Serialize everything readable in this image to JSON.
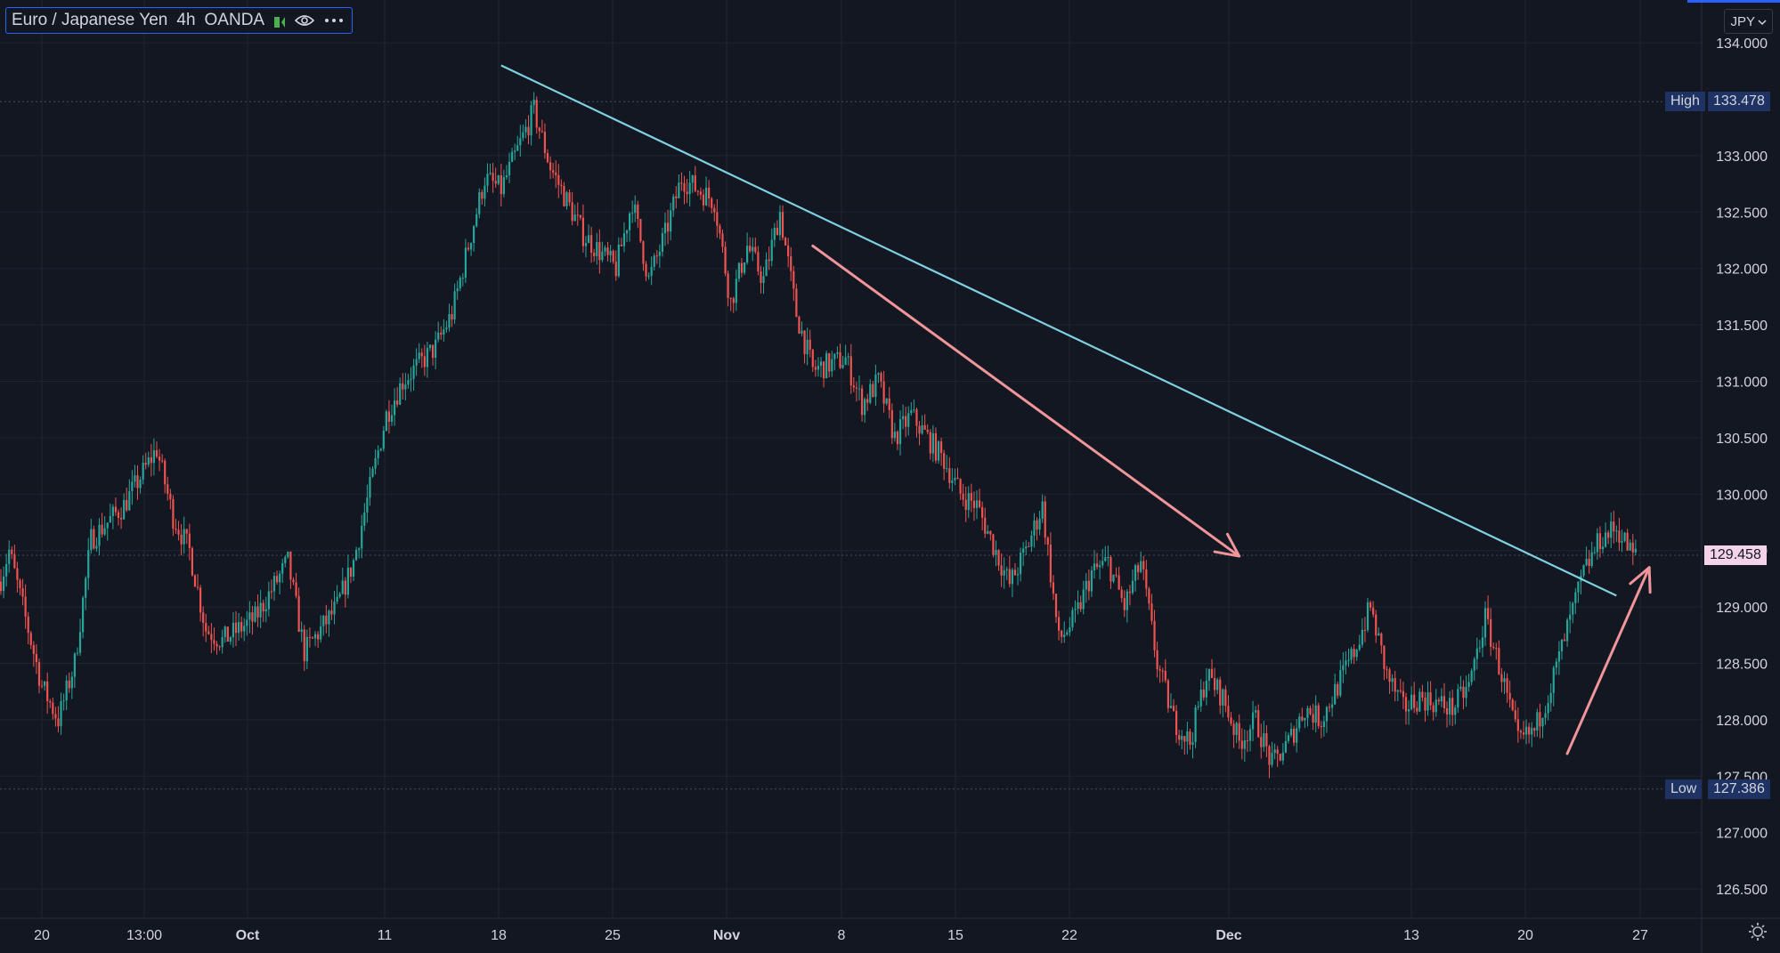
{
  "header": {
    "symbol_name": "Euro / Japanese Yen",
    "interval": "4h",
    "exchange": "OANDA",
    "currency_button": "JPY",
    "icons": [
      "flag-icon",
      "eye-icon",
      "more-icon",
      "chevron-down-icon",
      "settings-icon"
    ]
  },
  "price_labels": {
    "high_label": "High",
    "high_value": "133.478",
    "low_label": "Low",
    "low_value": "127.386",
    "last_value": "129.458"
  },
  "colors": {
    "background": "#131722",
    "grid": "#1f2430",
    "up_candle": "#26a69a",
    "down_candle": "#ef5350",
    "trendline": "#7fd0e0",
    "arrow": "#f0959a",
    "axis_text": "#d1d4dc",
    "accent": "#2962ff",
    "high_low_tag": "#1e3264",
    "last_price_tag": "#f3d3e8"
  },
  "chart_data": {
    "type": "candlestick",
    "title": "Euro / Japanese Yen · 4h · OANDA",
    "y_axis": {
      "ticks": [
        126.5,
        127.0,
        127.5,
        128.0,
        128.5,
        129.0,
        129.5,
        130.0,
        130.5,
        131.0,
        131.5,
        132.0,
        132.5,
        133.0,
        134.0
      ],
      "tick_labels": [
        "126.500",
        "127.000",
        "127.500",
        "128.000",
        "128.500",
        "129.000",
        "129.500",
        "130.000",
        "130.500",
        "131.000",
        "131.500",
        "132.000",
        "132.500",
        "133.000",
        "134.000"
      ],
      "range": [
        126.1,
        134.1
      ]
    },
    "x_axis": {
      "tick_labels": [
        "20",
        "13:00",
        "Oct",
        "11",
        "18",
        "25",
        "Nov",
        "8",
        "15",
        "22",
        "Dec",
        "13",
        "20",
        "27"
      ],
      "bold_labels": [
        "Oct",
        "Nov",
        "Dec"
      ]
    },
    "high": 133.478,
    "low": 127.386,
    "last": 129.458,
    "price_path": [
      {
        "t": "Sep 17",
        "p": 129.0
      },
      {
        "t": "Sep 18",
        "p": 129.5
      },
      {
        "t": "Sep 20",
        "p": 128.3
      },
      {
        "t": "Sep 21",
        "p": 128.0
      },
      {
        "t": "Sep 22",
        "p": 128.5
      },
      {
        "t": "Sep 23",
        "p": 129.6
      },
      {
        "t": "Sep 25",
        "p": 129.9
      },
      {
        "t": "Sep 27",
        "p": 130.4
      },
      {
        "t": "Sep 28",
        "p": 129.8
      },
      {
        "t": "Sep 29",
        "p": 129.5
      },
      {
        "t": "Sep 30",
        "p": 128.8
      },
      {
        "t": "Oct 01",
        "p": 128.7
      },
      {
        "t": "Oct 03",
        "p": 128.9
      },
      {
        "t": "Oct 05",
        "p": 129.4
      },
      {
        "t": "Oct 06",
        "p": 128.6
      },
      {
        "t": "Oct 08",
        "p": 129.0
      },
      {
        "t": "Oct 09",
        "p": 129.4
      },
      {
        "t": "Oct 11",
        "p": 130.7
      },
      {
        "t": "Oct 12",
        "p": 131.0
      },
      {
        "t": "Oct 14",
        "p": 131.3
      },
      {
        "t": "Oct 15",
        "p": 131.6
      },
      {
        "t": "Oct 17",
        "p": 132.8
      },
      {
        "t": "Oct 18",
        "p": 132.7
      },
      {
        "t": "Oct 20",
        "p": 133.4
      },
      {
        "t": "Oct 21",
        "p": 132.9
      },
      {
        "t": "Oct 22",
        "p": 132.6
      },
      {
        "t": "Oct 23",
        "p": 132.3
      },
      {
        "t": "Oct 25",
        "p": 132.0
      },
      {
        "t": "Oct 26",
        "p": 132.6
      },
      {
        "t": "Oct 27",
        "p": 131.9
      },
      {
        "t": "Oct 28",
        "p": 132.3
      },
      {
        "t": "Oct 29",
        "p": 132.8
      },
      {
        "t": "Oct 31",
        "p": 132.6
      },
      {
        "t": "Nov 01",
        "p": 131.7
      },
      {
        "t": "Nov 02",
        "p": 132.2
      },
      {
        "t": "Nov 03",
        "p": 131.9
      },
      {
        "t": "Nov 04",
        "p": 132.5
      },
      {
        "t": "Nov 05",
        "p": 131.6
      },
      {
        "t": "Nov 06",
        "p": 131.1
      },
      {
        "t": "Nov 08",
        "p": 131.2
      },
      {
        "t": "Nov 09",
        "p": 130.8
      },
      {
        "t": "Nov 10",
        "p": 131.0
      },
      {
        "t": "Nov 11",
        "p": 130.5
      },
      {
        "t": "Nov 12",
        "p": 130.7
      },
      {
        "t": "Nov 14",
        "p": 130.3
      },
      {
        "t": "Nov 15",
        "p": 130.0
      },
      {
        "t": "Nov 16",
        "p": 129.9
      },
      {
        "t": "Nov 18",
        "p": 129.2
      },
      {
        "t": "Nov 19",
        "p": 129.5
      },
      {
        "t": "Nov 20",
        "p": 129.9
      },
      {
        "t": "Nov 21",
        "p": 128.7
      },
      {
        "t": "Nov 22",
        "p": 128.9
      },
      {
        "t": "Nov 23",
        "p": 129.3
      },
      {
        "t": "Nov 24",
        "p": 129.4
      },
      {
        "t": "Nov 25",
        "p": 129.0
      },
      {
        "t": "Nov 26",
        "p": 129.4
      },
      {
        "t": "Nov 27",
        "p": 128.5
      },
      {
        "t": "Nov 28",
        "p": 128.0
      },
      {
        "t": "Nov 29",
        "p": 127.8
      },
      {
        "t": "Nov 30",
        "p": 128.4
      },
      {
        "t": "Dec 01",
        "p": 128.2
      },
      {
        "t": "Dec 02",
        "p": 127.8
      },
      {
        "t": "Dec 03",
        "p": 128.0
      },
      {
        "t": "Dec 04",
        "p": 127.6
      },
      {
        "t": "Dec 05",
        "p": 127.8
      },
      {
        "t": "Dec 06",
        "p": 128.1
      },
      {
        "t": "Dec 07",
        "p": 128.0
      },
      {
        "t": "Dec 09",
        "p": 128.6
      },
      {
        "t": "Dec 10",
        "p": 129.0
      },
      {
        "t": "Dec 11",
        "p": 128.4
      },
      {
        "t": "Dec 12",
        "p": 128.1
      },
      {
        "t": "Dec 13",
        "p": 128.2
      },
      {
        "t": "Dec 15",
        "p": 128.1
      },
      {
        "t": "Dec 16",
        "p": 128.3
      },
      {
        "t": "Dec 17",
        "p": 128.9
      },
      {
        "t": "Dec 18",
        "p": 128.4
      },
      {
        "t": "Dec 19",
        "p": 127.8
      },
      {
        "t": "Dec 20",
        "p": 127.9
      },
      {
        "t": "Dec 21",
        "p": 128.3
      },
      {
        "t": "Dec 22",
        "p": 128.8
      },
      {
        "t": "Dec 23",
        "p": 129.3
      },
      {
        "t": "Dec 24",
        "p": 129.6
      },
      {
        "t": "Dec 25",
        "p": 129.7
      },
      {
        "t": "Dec 26",
        "p": 129.46
      }
    ],
    "drawings": {
      "trendline": {
        "from": {
          "t": "Oct 18",
          "p": 133.8
        },
        "to": {
          "t": "Dec 25",
          "p": 129.1
        }
      },
      "down_arrow": {
        "from": {
          "t": "Nov 06",
          "p": 132.2
        },
        "to": {
          "t": "Dec 02",
          "p": 129.45
        }
      },
      "up_arrow": {
        "from": {
          "t": "Dec 22",
          "p": 127.7
        },
        "to": {
          "t": "Dec 27",
          "p": 129.35
        }
      }
    }
  }
}
